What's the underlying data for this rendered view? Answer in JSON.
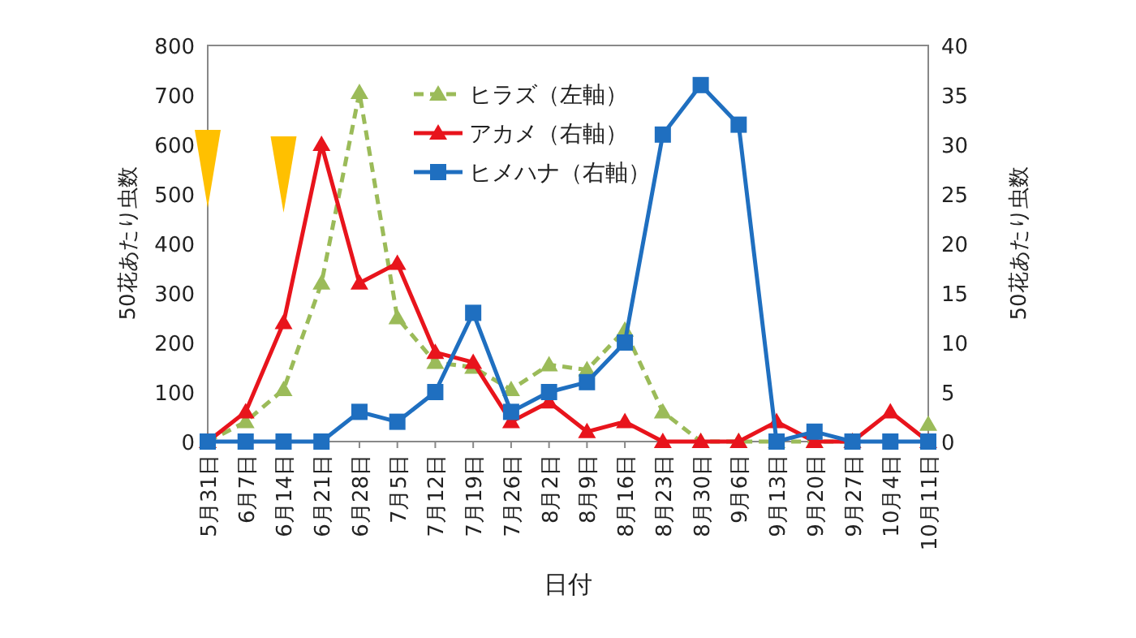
{
  "chart_data": {
    "type": "line",
    "xlabel": "日付",
    "ylabel": "50花あたり虫数",
    "y2label": "50花あたり虫数",
    "categories": [
      "5月31日",
      "6月7日",
      "6月14日",
      "6月21日",
      "6月28日",
      "7月5日",
      "7月12日",
      "7月19日",
      "7月26日",
      "8月2日",
      "8月9日",
      "8月16日",
      "8月23日",
      "8月30日",
      "9月6日",
      "9月13日",
      "9月20日",
      "9月27日",
      "10月4日",
      "10月11日"
    ],
    "series": [
      {
        "name": "ヒラズ（左軸）",
        "color": "#9bbb59",
        "marker": "triangle",
        "line_style": "dashed",
        "values": [
          0,
          40,
          105,
          320,
          705,
          250,
          160,
          150,
          105,
          155,
          145,
          225,
          60,
          0,
          0,
          0,
          0,
          0,
          null,
          35
        ]
      },
      {
        "name": "アカメ（右軸）",
        "color": "#e8141c",
        "marker": "triangle",
        "line_style": "solid",
        "axis": "y2",
        "values": [
          0,
          3,
          12,
          30,
          16,
          18,
          9,
          8,
          2,
          4,
          1,
          2,
          0,
          0,
          0,
          2,
          0,
          0,
          3,
          0
        ]
      },
      {
        "name": "ヒメハナ（右軸）",
        "color": "#1f6fc0",
        "marker": "square",
        "line_style": "solid",
        "axis": "y2",
        "values": [
          0,
          0,
          0,
          0,
          3,
          2,
          5,
          13,
          3,
          5,
          6,
          10,
          31,
          36,
          32,
          0,
          1,
          0,
          0,
          0
        ]
      }
    ],
    "ylim": [
      0,
      800
    ],
    "yticks": [
      0,
      100,
      200,
      300,
      400,
      500,
      600,
      700,
      800
    ],
    "y2lim": [
      0,
      40
    ],
    "y2ticks": [
      0,
      5,
      10,
      15,
      20,
      25,
      30,
      35,
      40
    ],
    "grid": false,
    "legend": "top"
  }
}
